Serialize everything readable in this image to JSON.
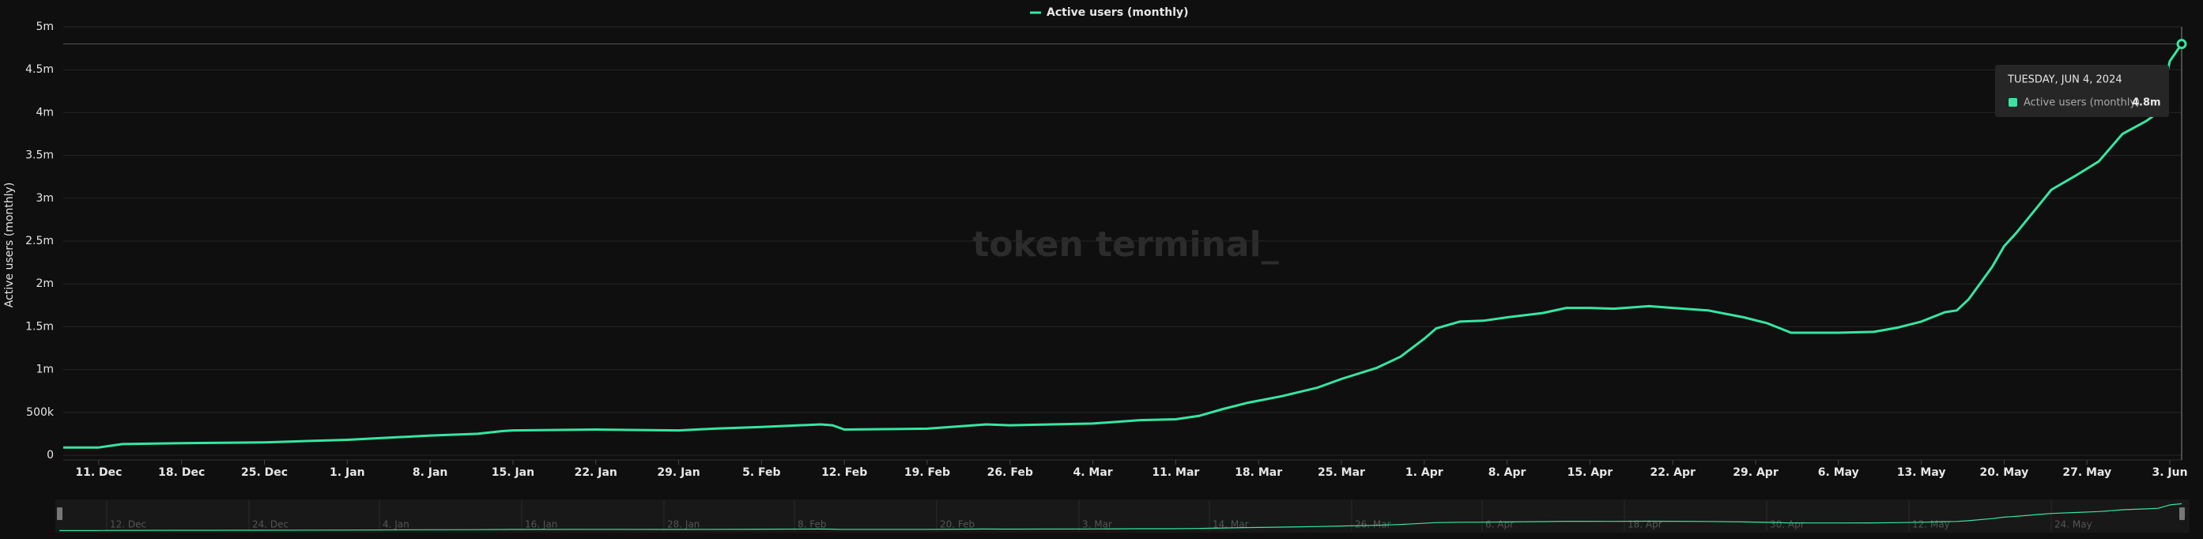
{
  "chart_data": {
    "type": "line",
    "watermark": "token terminal_",
    "y_label": "Active users (monthly)",
    "x": [
      "2023-12-08",
      "2023-12-11",
      "2023-12-13",
      "2023-12-18",
      "2023-12-25",
      "2024-01-01",
      "2024-01-08",
      "2024-01-12",
      "2024-01-14",
      "2024-01-15",
      "2024-01-22",
      "2024-01-29",
      "2024-02-01",
      "2024-02-05",
      "2024-02-10",
      "2024-02-11",
      "2024-02-12",
      "2024-02-19",
      "2024-02-24",
      "2024-02-26",
      "2024-03-04",
      "2024-03-08",
      "2024-03-11",
      "2024-03-13",
      "2024-03-15",
      "2024-03-17",
      "2024-03-20",
      "2024-03-23",
      "2024-03-25",
      "2024-03-28",
      "2024-03-30",
      "2024-04-01",
      "2024-04-02",
      "2024-04-04",
      "2024-04-06",
      "2024-04-08",
      "2024-04-11",
      "2024-04-13",
      "2024-04-15",
      "2024-04-17",
      "2024-04-20",
      "2024-04-22",
      "2024-04-25",
      "2024-04-28",
      "2024-04-30",
      "2024-05-02",
      "2024-05-04",
      "2024-05-06",
      "2024-05-09",
      "2024-05-11",
      "2024-05-13",
      "2024-05-15",
      "2024-05-16",
      "2024-05-17",
      "2024-05-19",
      "2024-05-20",
      "2024-05-21",
      "2024-05-23",
      "2024-05-24",
      "2024-05-26",
      "2024-05-28",
      "2024-05-29",
      "2024-05-30",
      "2024-06-01",
      "2024-06-02",
      "2024-06-03",
      "2024-06-04"
    ],
    "series": [
      {
        "name": "Active users (monthly)",
        "color": "#36e6a2",
        "values": [
          90000,
          90000,
          130000,
          140000,
          150000,
          180000,
          230000,
          250000,
          280000,
          290000,
          300000,
          290000,
          310000,
          330000,
          360000,
          350000,
          300000,
          310000,
          360000,
          350000,
          370000,
          410000,
          420000,
          460000,
          540000,
          610000,
          690000,
          790000,
          890000,
          1020000,
          1150000,
          1360000,
          1480000,
          1560000,
          1570000,
          1610000,
          1660000,
          1720000,
          1720000,
          1710000,
          1740000,
          1720000,
          1690000,
          1610000,
          1540000,
          1430000,
          1430000,
          1430000,
          1440000,
          1490000,
          1560000,
          1670000,
          1690000,
          1820000,
          2200000,
          2440000,
          2590000,
          2930000,
          3100000,
          3260000,
          3430000,
          3590000,
          3750000,
          3900000,
          4000000,
          4600000,
          4800000
        ]
      }
    ],
    "xlim": [
      "2023-12-08",
      "2024-06-04"
    ],
    "xticks": [
      {
        "value": "2023-12-11",
        "label": "11. Dec"
      },
      {
        "value": "2023-12-18",
        "label": "18. Dec"
      },
      {
        "value": "2023-12-25",
        "label": "25. Dec"
      },
      {
        "value": "2024-01-01",
        "label": "1. Jan"
      },
      {
        "value": "2024-01-08",
        "label": "8. Jan"
      },
      {
        "value": "2024-01-15",
        "label": "15. Jan"
      },
      {
        "value": "2024-01-22",
        "label": "22. Jan"
      },
      {
        "value": "2024-01-29",
        "label": "29. Jan"
      },
      {
        "value": "2024-02-05",
        "label": "5. Feb"
      },
      {
        "value": "2024-02-12",
        "label": "12. Feb"
      },
      {
        "value": "2024-02-19",
        "label": "19. Feb"
      },
      {
        "value": "2024-02-26",
        "label": "26. Feb"
      },
      {
        "value": "2024-03-04",
        "label": "4. Mar"
      },
      {
        "value": "2024-03-11",
        "label": "11. Mar"
      },
      {
        "value": "2024-03-18",
        "label": "18. Mar"
      },
      {
        "value": "2024-03-25",
        "label": "25. Mar"
      },
      {
        "value": "2024-04-01",
        "label": "1. Apr"
      },
      {
        "value": "2024-04-08",
        "label": "8. Apr"
      },
      {
        "value": "2024-04-15",
        "label": "15. Apr"
      },
      {
        "value": "2024-04-22",
        "label": "22. Apr"
      },
      {
        "value": "2024-04-29",
        "label": "29. Apr"
      },
      {
        "value": "2024-05-06",
        "label": "6. May"
      },
      {
        "value": "2024-05-13",
        "label": "13. May"
      },
      {
        "value": "2024-05-20",
        "label": "20. May"
      },
      {
        "value": "2024-05-27",
        "label": "27. May"
      },
      {
        "value": "2024-06-03",
        "label": "3. Jun"
      }
    ],
    "ylim": [
      0,
      5000000
    ],
    "yticks": [
      0,
      {
        "value": 500000,
        "label": "500k"
      },
      {
        "value": 1000000,
        "label": "1m"
      },
      {
        "value": 1500000,
        "label": "1.5m"
      },
      {
        "value": 2000000,
        "label": "2m"
      },
      {
        "value": 2500000,
        "label": "2.5m"
      },
      {
        "value": 3000000,
        "label": "3m"
      },
      {
        "value": 3500000,
        "label": "3.5m"
      },
      {
        "value": 4000000,
        "label": "4m"
      },
      {
        "value": 4500000,
        "label": "4.5m"
      },
      {
        "value": 5000000,
        "label": "5m"
      }
    ],
    "grid": true,
    "legend": "top",
    "navigator_ticks": [
      {
        "value": "2023-12-12",
        "label": "12. Dec"
      },
      {
        "value": "2023-12-24",
        "label": "24. Dec"
      },
      {
        "value": "2024-01-04",
        "label": "4. Jan"
      },
      {
        "value": "2024-01-16",
        "label": "16. Jan"
      },
      {
        "value": "2024-01-28",
        "label": "28. Jan"
      },
      {
        "value": "2024-02-08",
        "label": "8. Feb"
      },
      {
        "value": "2024-02-20",
        "label": "20. Feb"
      },
      {
        "value": "2024-03-03",
        "label": "3. Mar"
      },
      {
        "value": "2024-03-14",
        "label": "14. Mar"
      },
      {
        "value": "2024-03-26",
        "label": "26. Mar"
      },
      {
        "value": "2024-04-06",
        "label": "6. Apr"
      },
      {
        "value": "2024-04-18",
        "label": "18. Apr"
      },
      {
        "value": "2024-04-30",
        "label": "30. Apr"
      },
      {
        "value": "2024-05-12",
        "label": "12. May"
      },
      {
        "value": "2024-05-24",
        "label": "24. May"
      }
    ],
    "tooltip": {
      "date": "TUESDAY, JUN 4, 2024",
      "value_label": "4.8m"
    }
  }
}
